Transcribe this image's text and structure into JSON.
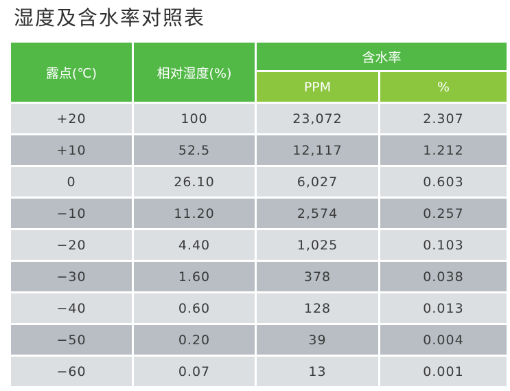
{
  "title": "湿度及含水率对照表",
  "header": {
    "dew_point": "露点(℃)",
    "relative_humidity": "相对湿度(%)",
    "water_content": "含水率",
    "ppm": "PPM",
    "percent": "%"
  },
  "colors": {
    "header_main": "#52b947",
    "header_sub": "#8cc63f",
    "row_light": "#dcdfe2",
    "row_dark": "#b8bec4"
  },
  "rows": [
    {
      "dew_point": "+20",
      "rh": "100",
      "ppm": "23,072",
      "percent": "2.307"
    },
    {
      "dew_point": "+10",
      "rh": "52.5",
      "ppm": "12,117",
      "percent": "1.212"
    },
    {
      "dew_point": "0",
      "rh": "26.10",
      "ppm": "6,027",
      "percent": "0.603"
    },
    {
      "dew_point": "−10",
      "rh": "11.20",
      "ppm": "2,574",
      "percent": "0.257"
    },
    {
      "dew_point": "−20",
      "rh": "4.40",
      "ppm": "1,025",
      "percent": "0.103"
    },
    {
      "dew_point": "−30",
      "rh": "1.60",
      "ppm": "378",
      "percent": "0.038"
    },
    {
      "dew_point": "−40",
      "rh": "0.60",
      "ppm": "128",
      "percent": "0.013"
    },
    {
      "dew_point": "−50",
      "rh": "0.20",
      "ppm": "39",
      "percent": "0.004"
    },
    {
      "dew_point": "−60",
      "rh": "0.07",
      "ppm": "13",
      "percent": "0.001"
    }
  ]
}
